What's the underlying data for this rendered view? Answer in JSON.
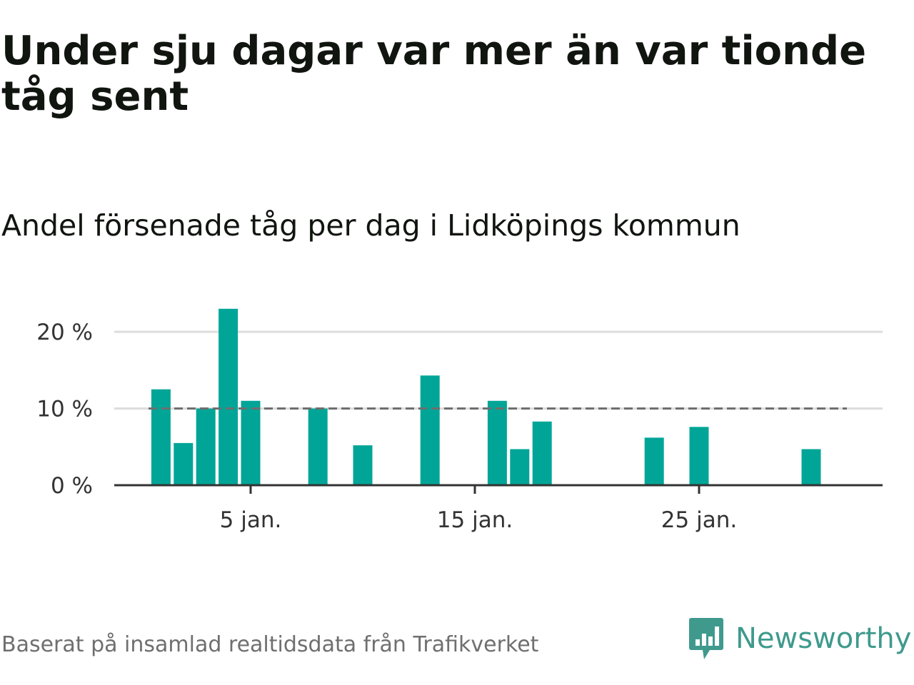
{
  "title": "Under sju dagar var mer än var tionde tåg sent",
  "subtitle": "Andel försenade tåg per dag i Lidköpings kommun",
  "source": "Baserat på insamlad realtidsdata från Trafikverket",
  "brand": {
    "name": "Newsworthy",
    "icon": "newsworthy-logo-icon",
    "color": "#3f9a8d"
  },
  "chart_data": {
    "type": "bar",
    "x_unit": "day of January",
    "x": [
      1,
      2,
      3,
      4,
      5,
      6,
      7,
      8,
      9,
      10,
      11,
      12,
      13,
      14,
      15,
      16,
      17,
      18,
      19,
      20,
      21,
      22,
      23,
      24,
      25,
      26,
      27,
      28,
      29,
      30,
      31
    ],
    "values": [
      12.5,
      5.5,
      10,
      23,
      11,
      null,
      null,
      10,
      null,
      5.2,
      null,
      null,
      14.3,
      null,
      null,
      11,
      4.7,
      8.3,
      null,
      null,
      null,
      null,
      6.2,
      null,
      7.6,
      null,
      null,
      null,
      null,
      4.7,
      null
    ],
    "ylim": [
      0,
      25
    ],
    "yticks": [
      {
        "value": 0,
        "label": "0 %"
      },
      {
        "value": 10,
        "label": "10 %"
      },
      {
        "value": 20,
        "label": "20 %"
      }
    ],
    "xticks": [
      {
        "value": 5,
        "label": "5 jan."
      },
      {
        "value": 15,
        "label": "15 jan."
      },
      {
        "value": 25,
        "label": "25 jan."
      }
    ],
    "reference_line": {
      "value": 10,
      "style": "dashed",
      "color": "#6e6e6e"
    },
    "bar_color": "#00a597",
    "grid": true
  }
}
